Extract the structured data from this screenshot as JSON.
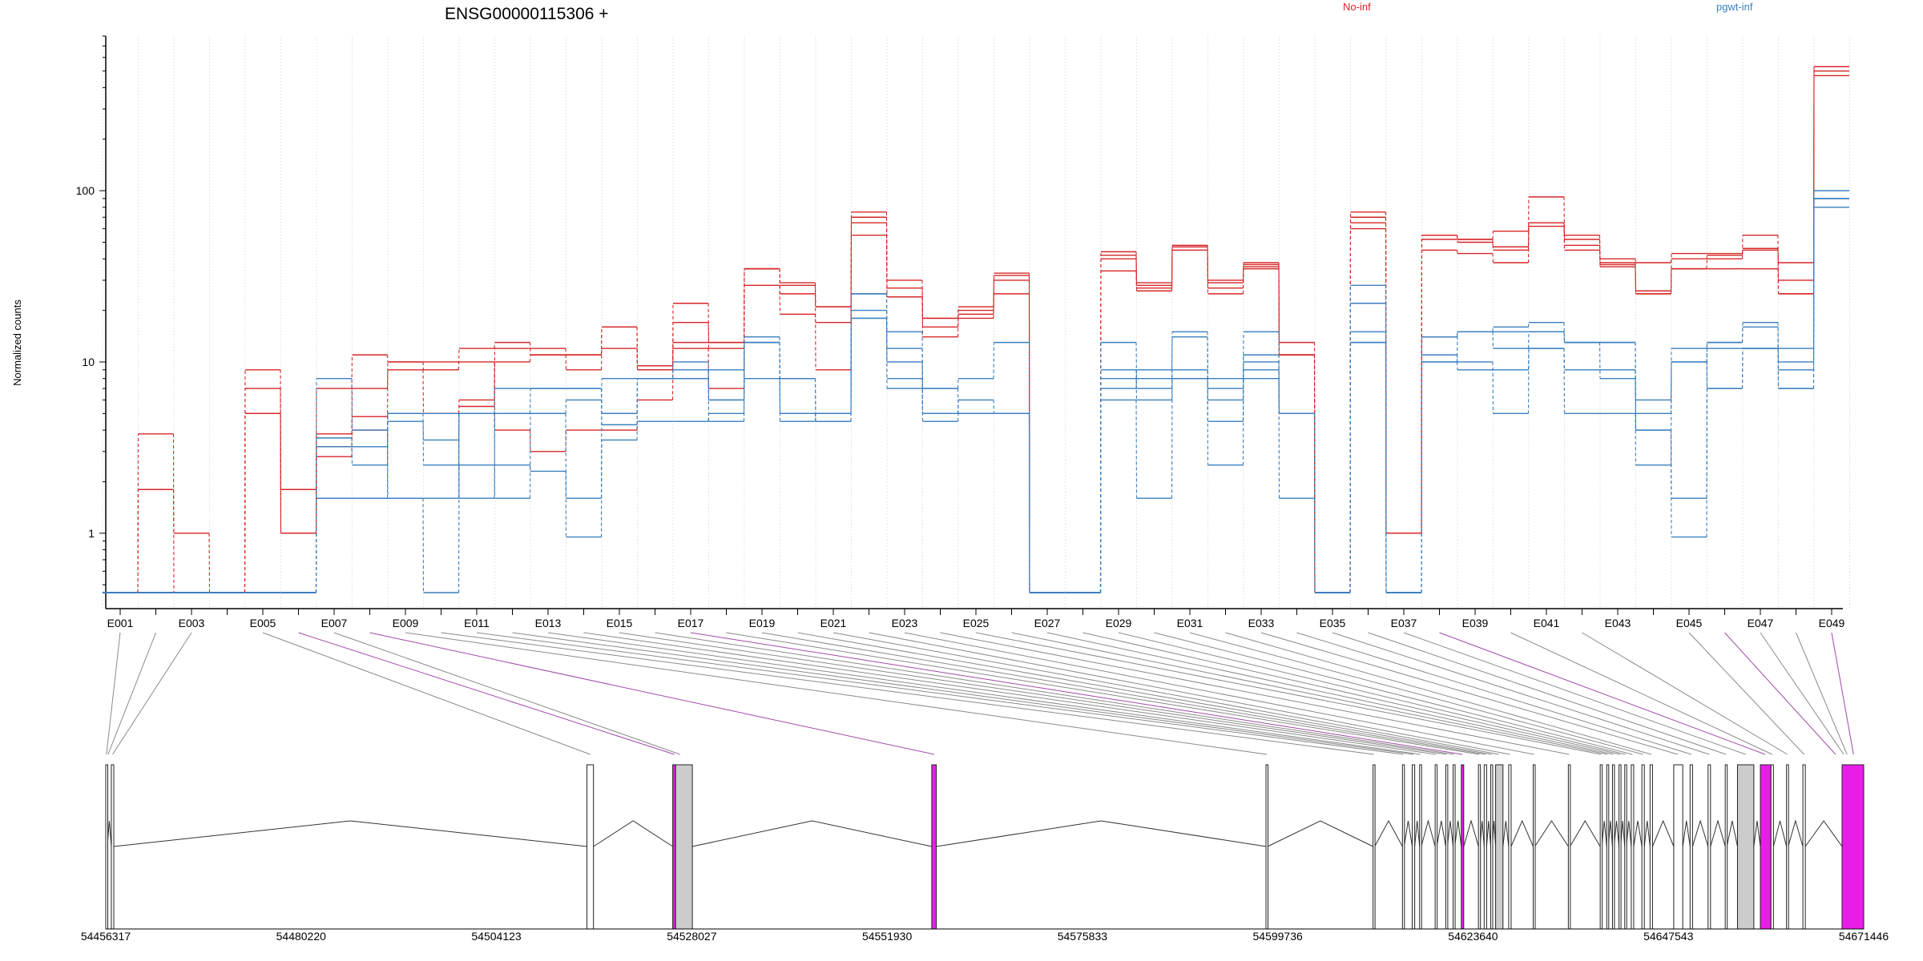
{
  "chart_data": {
    "type": "line",
    "title": "ENSG00000115306 +",
    "ylabel": "Normalized counts",
    "yscale": "log",
    "ylim": [
      0.45,
      800
    ],
    "yticks": [
      1,
      10,
      100
    ],
    "ytick_labels": [
      "1",
      "10",
      "100"
    ],
    "legend_placement": "top",
    "colors": {
      "No-inf": "#d62728",
      "pgwt-inf": "#3a7fbf",
      "highlight": "#e81ee8"
    },
    "exons": [
      "E001",
      "E002",
      "E003",
      "E004",
      "E005",
      "E006",
      "E007",
      "E008",
      "E009",
      "E010",
      "E011",
      "E012",
      "E013",
      "E014",
      "E015",
      "E016",
      "E017",
      "E018",
      "E019",
      "E020",
      "E021",
      "E022",
      "E023",
      "E024",
      "E025",
      "E026",
      "E027",
      "E028",
      "E029",
      "E030",
      "E031",
      "E032",
      "E033",
      "E034",
      "E035",
      "E036",
      "E037",
      "E038",
      "E039",
      "E040",
      "E041",
      "E042",
      "E043",
      "E044",
      "E045",
      "E046",
      "E047",
      "E048",
      "E049"
    ],
    "xtick_labels": [
      "E001",
      "E003",
      "E005",
      "E007",
      "E009",
      "E011",
      "E013",
      "E015",
      "E017",
      "E019",
      "E021",
      "E023",
      "E025",
      "E027",
      "E029",
      "E031",
      "E033",
      "E035",
      "E037",
      "E039",
      "E041",
      "E043",
      "E045",
      "E047",
      "E049"
    ],
    "series": [
      {
        "name": "No-inf",
        "group": "No-inf",
        "values": [
          0.45,
          1.8,
          1,
          0.45,
          5,
          1,
          3.8,
          4.8,
          5,
          5,
          5.5,
          10,
          11,
          11,
          16,
          9.5,
          13,
          13,
          35,
          28,
          9,
          75,
          30,
          18,
          21,
          33,
          0.45,
          0.45,
          42,
          28,
          48,
          30,
          37,
          11,
          0.45,
          75,
          1,
          52,
          52,
          45,
          65,
          48,
          38,
          26,
          43,
          43,
          46,
          38,
          530
        ]
      },
      {
        "name": "No-inf",
        "group": "No-inf",
        "values": [
          0.45,
          3.8,
          0.45,
          0.45,
          9,
          1.8,
          7,
          11,
          10,
          9,
          12,
          13,
          11,
          9,
          12,
          9,
          17,
          12,
          28,
          19,
          17,
          70,
          27,
          16,
          19,
          32,
          0.45,
          0.45,
          40,
          27,
          47,
          29,
          36,
          13,
          0.45,
          70,
          1,
          55,
          50,
          47,
          62,
          52,
          40,
          38,
          40,
          42,
          45,
          30,
          500
        ]
      },
      {
        "name": "No-inf",
        "group": "No-inf",
        "values": [
          0.45,
          0.45,
          0.45,
          0.45,
          7,
          1,
          3.2,
          4,
          9,
          5,
          6,
          12,
          12,
          11,
          16,
          9,
          22,
          13,
          35,
          29,
          21,
          65,
          24,
          18,
          20,
          30,
          0.45,
          0.45,
          44,
          29,
          47,
          27,
          38,
          11,
          0.45,
          65,
          1,
          55,
          52,
          58,
          92,
          55,
          36,
          25,
          35,
          40,
          55,
          25,
          470
        ]
      },
      {
        "name": "No-inf",
        "group": "No-inf",
        "values": [
          0.45,
          0.45,
          0.45,
          0.45,
          5,
          1,
          2.8,
          7,
          10,
          10,
          10,
          4,
          3,
          4,
          4,
          6,
          12,
          7,
          35,
          25,
          21,
          55,
          24,
          14,
          18,
          25,
          0.45,
          0.45,
          34,
          26,
          45,
          25,
          35,
          11,
          0.45,
          60,
          1,
          45,
          43,
          38,
          65,
          45,
          37,
          25,
          35,
          35,
          35,
          25,
          530
        ]
      },
      {
        "name": "pgwt-inf",
        "group": "pgwt-inf",
        "values": [
          0.45,
          0.45,
          0.45,
          0.45,
          0.45,
          0.45,
          3.2,
          3.2,
          5,
          2.5,
          5,
          7,
          7,
          7,
          4.3,
          8,
          8,
          4.5,
          13,
          8,
          4.5,
          25,
          12,
          7,
          8,
          13,
          0.45,
          0.45,
          13,
          8,
          15,
          8,
          10,
          5,
          0.45,
          28,
          0.45,
          14,
          15,
          16,
          17,
          13,
          13,
          6,
          12,
          13,
          16,
          7,
          100
        ]
      },
      {
        "name": "pgwt-inf",
        "group": "pgwt-inf",
        "values": [
          0.45,
          0.45,
          0.45,
          0.45,
          0.45,
          0.45,
          8,
          4,
          1.6,
          1.6,
          5,
          1.6,
          5,
          1.6,
          8,
          8,
          10,
          6,
          8,
          4.5,
          5,
          18,
          8,
          4.5,
          5,
          5,
          0.45,
          0.45,
          8,
          6,
          8,
          4.5,
          8,
          5,
          0.45,
          22,
          0.45,
          11,
          10,
          5,
          12,
          5,
          5,
          2.5,
          10,
          7,
          12,
          12,
          80
        ]
      },
      {
        "name": "pgwt-inf",
        "group": "pgwt-inf",
        "values": [
          0.45,
          0.45,
          0.45,
          0.45,
          0.45,
          0.45,
          3.6,
          2.5,
          4.5,
          3.5,
          5,
          5,
          5,
          6,
          5,
          8,
          9,
          6,
          14,
          5,
          5,
          20,
          10,
          5,
          5,
          5,
          0.45,
          0.45,
          9,
          7,
          9,
          6,
          9,
          5,
          0.45,
          15,
          0.45,
          10,
          9,
          9,
          12,
          9,
          9,
          5,
          10,
          12,
          12,
          7,
          90
        ]
      },
      {
        "name": "pgwt-inf",
        "group": "pgwt-inf",
        "values": [
          0.45,
          0.45,
          0.45,
          0.45,
          0.45,
          0.45,
          1.6,
          1.6,
          1.6,
          0.45,
          2.5,
          2.5,
          2.3,
          0.95,
          3.5,
          4.5,
          4.5,
          5,
          13,
          5,
          4.5,
          18,
          7,
          5,
          6,
          5,
          0.45,
          0.45,
          6,
          1.6,
          8,
          2.5,
          11,
          1.6,
          0.45,
          13,
          0.45,
          10,
          15,
          15,
          15,
          13,
          8,
          4,
          1.6,
          7,
          12,
          9,
          90
        ]
      },
      {
        "name": "pgwt-inf",
        "group": "pgwt-inf",
        "values": [
          0.45,
          0.45,
          0.45,
          0.45,
          0.45,
          0.45,
          1.6,
          1.6,
          5,
          5,
          1.6,
          5,
          7,
          7,
          5,
          8,
          8,
          9,
          13,
          8,
          5,
          25,
          15,
          7,
          5,
          5,
          0.45,
          0.45,
          7,
          9,
          14,
          7,
          15,
          5,
          0.45,
          13,
          0.45,
          14,
          15,
          12,
          15,
          13,
          13,
          4,
          0.95,
          13,
          17,
          10,
          90
        ]
      }
    ],
    "genomic_axis": {
      "range": [
        54456317,
        54671446
      ],
      "ticks": [
        54456317,
        54480220,
        54504123,
        54528027,
        54551930,
        54575833,
        54599736,
        54623640,
        54647543,
        54671446
      ],
      "tick_labels": [
        "54456317",
        "54480220",
        "54504123",
        "54528027",
        "54551930",
        "54575833",
        "54599736",
        "54623640",
        "54647543",
        "54671446"
      ]
    },
    "gene_model": {
      "exons": [
        {
          "start": 54456317,
          "end": 54456500,
          "type": "plain"
        },
        {
          "start": 54457000,
          "end": 54457300,
          "type": "plain"
        },
        {
          "start": 54515200,
          "end": 54516000,
          "type": "plain"
        },
        {
          "start": 54525700,
          "end": 54526050,
          "type": "highlight"
        },
        {
          "start": 54526050,
          "end": 54528100,
          "type": "gray"
        },
        {
          "start": 54557400,
          "end": 54557950,
          "type": "highlight"
        },
        {
          "start": 54598300,
          "end": 54598500,
          "type": "plain"
        },
        {
          "start": 54611400,
          "end": 54611600,
          "type": "plain"
        },
        {
          "start": 54615000,
          "end": 54615200,
          "type": "plain"
        },
        {
          "start": 54616200,
          "end": 54616500,
          "type": "plain"
        },
        {
          "start": 54617100,
          "end": 54617300,
          "type": "plain"
        },
        {
          "start": 54619000,
          "end": 54619200,
          "type": "plain"
        },
        {
          "start": 54620300,
          "end": 54620500,
          "type": "plain"
        },
        {
          "start": 54621200,
          "end": 54621400,
          "type": "plain"
        },
        {
          "start": 54622200,
          "end": 54622500,
          "type": "highlight"
        },
        {
          "start": 54624300,
          "end": 54624500,
          "type": "plain"
        },
        {
          "start": 54625000,
          "end": 54625300,
          "type": "plain"
        },
        {
          "start": 54625800,
          "end": 54626000,
          "type": "plain"
        },
        {
          "start": 54626400,
          "end": 54627300,
          "type": "gray"
        },
        {
          "start": 54628000,
          "end": 54628300,
          "type": "plain"
        },
        {
          "start": 54631000,
          "end": 54631200,
          "type": "plain"
        },
        {
          "start": 54635300,
          "end": 54635500,
          "type": "plain"
        },
        {
          "start": 54639200,
          "end": 54639400,
          "type": "plain"
        },
        {
          "start": 54640000,
          "end": 54640200,
          "type": "plain"
        },
        {
          "start": 54640700,
          "end": 54640900,
          "type": "plain"
        },
        {
          "start": 54641500,
          "end": 54641700,
          "type": "plain"
        },
        {
          "start": 54642200,
          "end": 54642400,
          "type": "plain"
        },
        {
          "start": 54643000,
          "end": 54643300,
          "type": "plain"
        },
        {
          "start": 54644300,
          "end": 54644600,
          "type": "plain"
        },
        {
          "start": 54645300,
          "end": 54645600,
          "type": "plain"
        },
        {
          "start": 54648200,
          "end": 54649300,
          "type": "plain"
        },
        {
          "start": 54650200,
          "end": 54650500,
          "type": "plain"
        },
        {
          "start": 54652400,
          "end": 54652700,
          "type": "plain"
        },
        {
          "start": 54654500,
          "end": 54654700,
          "type": "plain"
        },
        {
          "start": 54656000,
          "end": 54658000,
          "type": "gray"
        },
        {
          "start": 54658800,
          "end": 54660100,
          "type": "highlight"
        },
        {
          "start": 54660100,
          "end": 54660400,
          "type": "plain"
        },
        {
          "start": 54662000,
          "end": 54662200,
          "type": "plain"
        },
        {
          "start": 54664000,
          "end": 54664300,
          "type": "plain"
        },
        {
          "start": 54668800,
          "end": 54671446,
          "type": "highlight"
        }
      ]
    },
    "connectors": [
      {
        "exon": "E001",
        "pos": 54456400,
        "highlight": false
      },
      {
        "exon": "E002",
        "pos": 54456600,
        "highlight": false
      },
      {
        "exon": "E003",
        "pos": 54457150,
        "highlight": false
      },
      {
        "exon": "E005",
        "pos": 54515600,
        "highlight": false
      },
      {
        "exon": "E006",
        "pos": 54525900,
        "highlight": true
      },
      {
        "exon": "E007",
        "pos": 54526600,
        "highlight": false
      },
      {
        "exon": "E008",
        "pos": 54557700,
        "highlight": true
      },
      {
        "exon": "E009",
        "pos": 54598400,
        "highlight": false
      },
      {
        "exon": "E010",
        "pos": 54611500,
        "highlight": false
      },
      {
        "exon": "E011",
        "pos": 54615100,
        "highlight": false
      },
      {
        "exon": "E012",
        "pos": 54616350,
        "highlight": false
      },
      {
        "exon": "E013",
        "pos": 54617200,
        "highlight": false
      },
      {
        "exon": "E014",
        "pos": 54619100,
        "highlight": false
      },
      {
        "exon": "E015",
        "pos": 54620400,
        "highlight": false
      },
      {
        "exon": "E016",
        "pos": 54621300,
        "highlight": false
      },
      {
        "exon": "E017",
        "pos": 54622350,
        "highlight": true
      },
      {
        "exon": "E018",
        "pos": 54624400,
        "highlight": false
      },
      {
        "exon": "E019",
        "pos": 54625150,
        "highlight": false
      },
      {
        "exon": "E020",
        "pos": 54625900,
        "highlight": false
      },
      {
        "exon": "E021",
        "pos": 54626800,
        "highlight": false
      },
      {
        "exon": "E022",
        "pos": 54628150,
        "highlight": false
      },
      {
        "exon": "E023",
        "pos": 54631100,
        "highlight": false
      },
      {
        "exon": "E024",
        "pos": 54635400,
        "highlight": false
      },
      {
        "exon": "E025",
        "pos": 54639300,
        "highlight": false
      },
      {
        "exon": "E026",
        "pos": 54640100,
        "highlight": false
      },
      {
        "exon": "E027",
        "pos": 54640800,
        "highlight": false
      },
      {
        "exon": "E028",
        "pos": 54641600,
        "highlight": false
      },
      {
        "exon": "E029",
        "pos": 54642300,
        "highlight": false
      },
      {
        "exon": "E030",
        "pos": 54643150,
        "highlight": false
      },
      {
        "exon": "E031",
        "pos": 54644450,
        "highlight": false
      },
      {
        "exon": "E032",
        "pos": 54645450,
        "highlight": false
      },
      {
        "exon": "E033",
        "pos": 54648700,
        "highlight": false
      },
      {
        "exon": "E034",
        "pos": 54650350,
        "highlight": false
      },
      {
        "exon": "E035",
        "pos": 54652550,
        "highlight": false
      },
      {
        "exon": "E036",
        "pos": 54654600,
        "highlight": false
      },
      {
        "exon": "E037",
        "pos": 54657000,
        "highlight": false
      },
      {
        "exon": "E038",
        "pos": 54659400,
        "highlight": true
      },
      {
        "exon": "E040",
        "pos": 54660250,
        "highlight": false
      },
      {
        "exon": "E042",
        "pos": 54662100,
        "highlight": false
      },
      {
        "exon": "E045",
        "pos": 54664150,
        "highlight": false
      },
      {
        "exon": "E046",
        "pos": 54668000,
        "highlight": true
      },
      {
        "exon": "E047",
        "pos": 54669000,
        "highlight": false
      },
      {
        "exon": "E048",
        "pos": 54669400,
        "highlight": false
      },
      {
        "exon": "E049",
        "pos": 54670200,
        "highlight": true
      }
    ]
  }
}
